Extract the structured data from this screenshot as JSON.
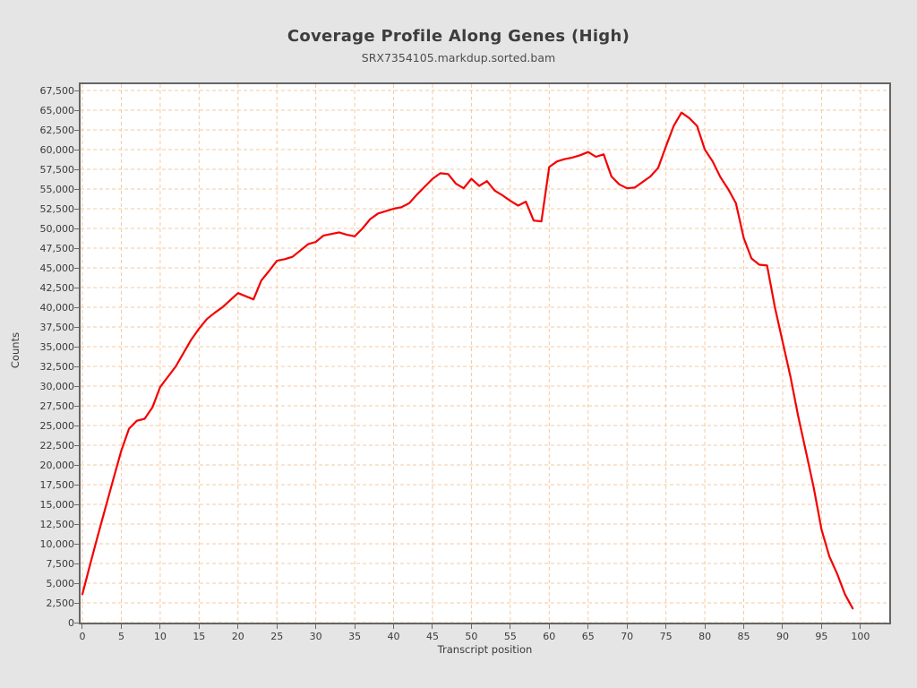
{
  "chart_data": {
    "type": "line",
    "title": "Coverage Profile Along Genes (High)",
    "subtitle": "SRX7354105.markdup.sorted.bam",
    "xlabel": "Transcript position",
    "ylabel": "Counts",
    "xlim": [
      -0.23,
      103.7
    ],
    "ylim": [
      0,
      68300
    ],
    "x_ticks": [
      0,
      5,
      10,
      15,
      20,
      25,
      30,
      35,
      40,
      45,
      50,
      55,
      60,
      65,
      70,
      75,
      80,
      85,
      90,
      95,
      100
    ],
    "y_ticks": [
      0,
      2500,
      5000,
      7500,
      10000,
      12500,
      15000,
      17500,
      20000,
      22500,
      25000,
      27500,
      30000,
      32500,
      35000,
      37500,
      40000,
      42500,
      45000,
      47500,
      50000,
      52500,
      55000,
      57500,
      60000,
      62500,
      65000,
      67500
    ],
    "grid": {
      "show": true,
      "style": "dashed",
      "color": "#f6c9a2"
    },
    "legend": {
      "show": false
    },
    "colors": {
      "background": "#e5e5e5",
      "plot_background": "#ffffff",
      "plot_border": "#656565",
      "series_red": "#f40000",
      "text": "#3a3a3a"
    },
    "series": [
      {
        "name": "coverage",
        "color": "#f40000",
        "x": [
          0,
          1,
          2,
          3,
          4,
          5,
          6,
          7,
          8,
          9,
          10,
          11,
          12,
          13,
          14,
          15,
          16,
          17,
          18,
          19,
          20,
          21,
          22,
          23,
          24,
          25,
          26,
          27,
          28,
          29,
          30,
          31,
          32,
          33,
          34,
          35,
          36,
          37,
          38,
          39,
          40,
          41,
          42,
          43,
          44,
          45,
          46,
          47,
          48,
          49,
          50,
          51,
          52,
          53,
          54,
          55,
          56,
          57,
          58,
          59,
          60,
          61,
          62,
          63,
          64,
          65,
          66,
          67,
          68,
          69,
          70,
          71,
          72,
          73,
          74,
          75,
          76,
          77,
          78,
          79,
          80,
          81,
          82,
          83,
          84,
          85,
          86,
          87,
          88,
          89,
          90,
          91,
          92,
          93,
          94,
          95,
          96,
          97,
          98,
          99
        ],
        "y": [
          3600,
          7400,
          11100,
          14700,
          18300,
          21800,
          24600,
          25600,
          25850,
          27300,
          29900,
          31200,
          32500,
          34200,
          35900,
          37300,
          38500,
          39300,
          40000,
          40900,
          41800,
          41400,
          41000,
          43400,
          44600,
          45900,
          46100,
          46400,
          47200,
          48000,
          48300,
          49100,
          49300,
          49500,
          49200,
          49000,
          50000,
          51200,
          51900,
          52200,
          52500,
          52700,
          53200,
          54300,
          55300,
          56300,
          57000,
          56900,
          55700,
          55100,
          56300,
          55400,
          56000,
          54800,
          54200,
          53500,
          52900,
          53400,
          51000,
          50900,
          57800,
          58500,
          58800,
          59000,
          59300,
          59700,
          59100,
          59400,
          56600,
          55600,
          55100,
          55200,
          55900,
          56600,
          57700,
          60400,
          63000,
          64700,
          64000,
          63000,
          60000,
          58500,
          56500,
          55000,
          53200,
          48800,
          46200,
          45400,
          45300,
          40000,
          35600,
          31200,
          26200,
          21700,
          17100,
          11800,
          8400,
          6200,
          3600,
          1800
        ]
      }
    ]
  }
}
